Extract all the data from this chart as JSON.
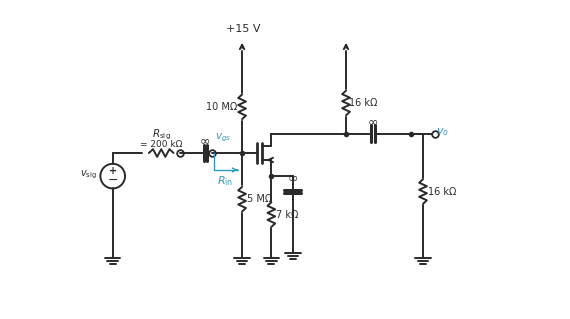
{
  "bg_color": "#ffffff",
  "line_color": "#2a2a2a",
  "cyan_color": "#3399bb",
  "figsize": [
    5.7,
    3.19
  ],
  "dpi": 100,
  "title_label": "+15 V",
  "rsig_label": "= 200 kΩ",
  "r10m_label": "10 MΩ",
  "r5m_label": "5 MΩ",
  "r16k_top_label": "16 kΩ",
  "r16k_right_label": "16 kΩ",
  "r7k_label": "7 kΩ",
  "inf_sym": "∞",
  "vgs_label": "v_{gs}",
  "vo_label": "v_o",
  "rin_label": "R_{in}",
  "vsig_label": "v_{sig}",
  "rsig_name": "R_{sig}"
}
